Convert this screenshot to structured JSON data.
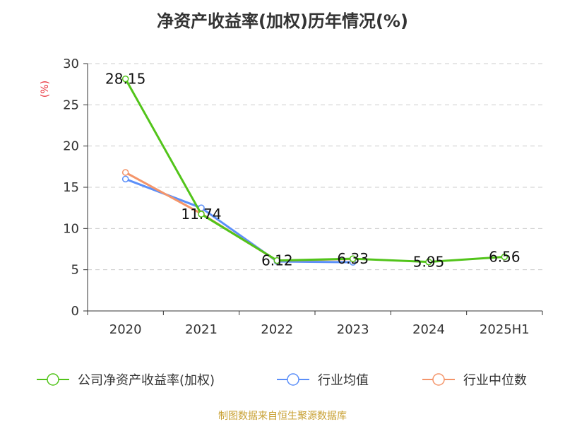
{
  "title": "净资产收益率(加权)历年情况(%)",
  "source": "制图数据来自恒生聚源数据库",
  "chart_data": {
    "type": "line",
    "title": "净资产收益率(加权)历年情况(%)",
    "ylabel": "(%)",
    "ylim": [
      0,
      30
    ],
    "yticks": [
      0,
      5,
      10,
      15,
      20,
      25,
      30
    ],
    "grid": true,
    "legend_position": "bottom",
    "categories": [
      "2020",
      "2021",
      "2022",
      "2023",
      "2024",
      "2025H1"
    ],
    "series": [
      {
        "name": "公司净资产收益率(加权)",
        "color": "#52c41a",
        "values": [
          28.15,
          11.74,
          6.12,
          6.33,
          5.95,
          6.56
        ],
        "labels": [
          "28.15",
          "11.74",
          "6.12",
          "6.33",
          "5.95",
          "6.56"
        ]
      },
      {
        "name": "行业均值",
        "color": "#5b8ff9",
        "values": [
          16.0,
          12.5,
          6.0,
          5.9,
          null,
          null
        ]
      },
      {
        "name": "行业中位数",
        "color": "#f4956a",
        "values": [
          16.8,
          11.8,
          6.1,
          6.3,
          null,
          null
        ]
      }
    ],
    "ylabel_color": "#e8303a"
  }
}
